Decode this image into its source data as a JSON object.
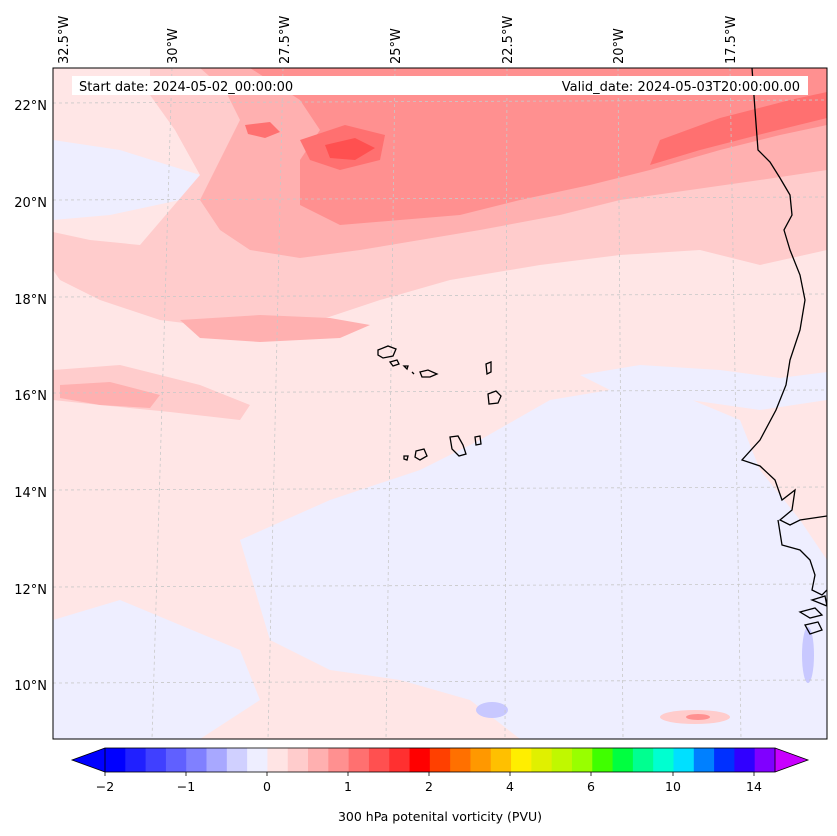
{
  "header": {
    "start_date": "Start date: 2024-05-02_00:00:00",
    "valid_date": "Valid_date: 2024-05-03T20:00:00.00"
  },
  "longitude_labels": [
    "32.5°W",
    "30°W",
    "27.5°W",
    "25°W",
    "22.5°W",
    "20°W",
    "17.5°W"
  ],
  "latitude_labels": [
    "22°N",
    "20°N",
    "18°N",
    "16°N",
    "14°N",
    "12°N",
    "10°N"
  ],
  "colorbar": {
    "colors": [
      "#0000ff",
      "#2020ff",
      "#4040ff",
      "#6060ff",
      "#8080ff",
      "#a8a8ff",
      "#d0d0ff",
      "#eeeeff",
      "#ffe4e4",
      "#ffcccc",
      "#ffb0b0",
      "#ff9090",
      "#ff7070",
      "#ff5050",
      "#ff3030",
      "#ff0000",
      "#ff4000",
      "#ff7000",
      "#ff9800",
      "#ffc000",
      "#ffee00",
      "#e0f000",
      "#c0f800",
      "#98ff00",
      "#40ff00",
      "#00ff40",
      "#00ff90",
      "#00ffd0",
      "#00e0ff",
      "#0080ff",
      "#0030ff",
      "#3000ff",
      "#8000ff"
    ],
    "under_color": "#0000ff",
    "over_color": "#c800ff",
    "tick_labels": [
      "−2",
      "−1",
      "0",
      "1",
      "2",
      "4",
      "6",
      "10",
      "14"
    ],
    "label": "300 hPa potenital vorticity (PVU)"
  },
  "colors": {
    "background_field": "#ffe6e6",
    "low_pv": "#eeeeff",
    "coastline": "#000000",
    "gridline": "#c8c8c8"
  }
}
